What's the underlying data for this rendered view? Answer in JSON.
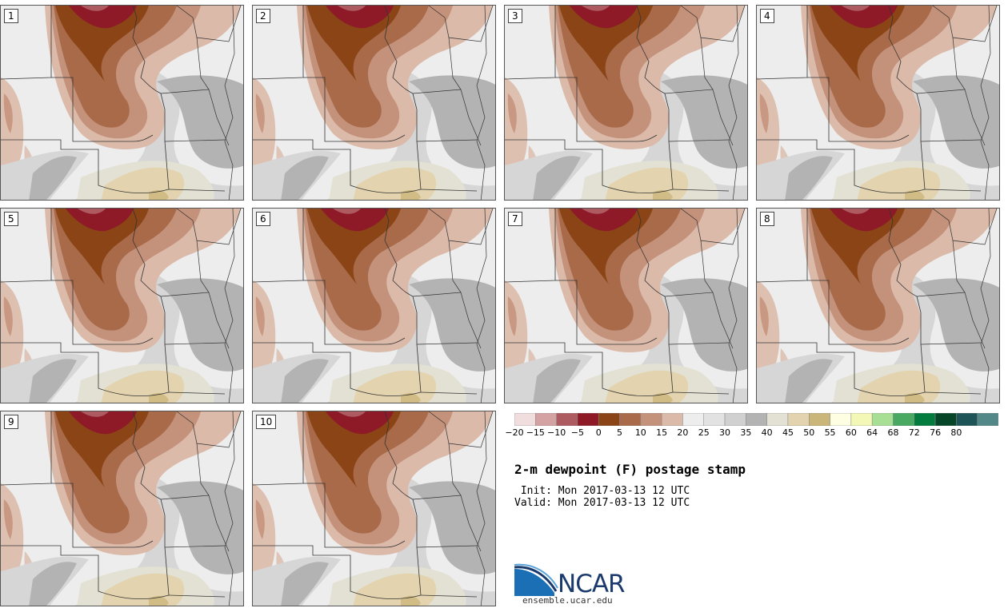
{
  "panels": [
    {
      "label": "1",
      "variant": 0
    },
    {
      "label": "2",
      "variant": 1
    },
    {
      "label": "3",
      "variant": 2
    },
    {
      "label": "4",
      "variant": 1
    },
    {
      "label": "5",
      "variant": 2
    },
    {
      "label": "6",
      "variant": 0
    },
    {
      "label": "7",
      "variant": 2
    },
    {
      "label": "8",
      "variant": 1
    },
    {
      "label": "9",
      "variant": 0
    },
    {
      "label": "10",
      "variant": 1
    }
  ],
  "colorbar": {
    "colors": [
      "#f0dede",
      "#d4a2a2",
      "#ad5a60",
      "#8e1a28",
      "#8a4416",
      "#a86a48",
      "#c4917a",
      "#dbbaa9",
      "#ededed",
      "#e2e2e2",
      "#d0d0d0",
      "#b3b3b3",
      "#e2e1d3",
      "#e3d3ae",
      "#cab679",
      "#fefee2",
      "#f3f8b6",
      "#a7e095",
      "#49a963",
      "#047b3e",
      "#054628",
      "#1d5458",
      "#538888"
    ],
    "ticks": [
      "−20",
      "−15",
      "−10",
      "−5",
      "0",
      "5",
      "10",
      "15",
      "20",
      "25",
      "30",
      "35",
      "40",
      "45",
      "50",
      "55",
      "60",
      "64",
      "68",
      "72",
      "76",
      "80"
    ]
  },
  "title": "2-m dewpoint (F) postage stamp",
  "init": " Init: Mon 2017-03-13 12 UTC",
  "valid": "Valid: Mon 2017-03-13 12 UTC",
  "logo": {
    "name": "ncar-logo",
    "text": "NCAR",
    "site": "ensemble.ucar.edu"
  }
}
